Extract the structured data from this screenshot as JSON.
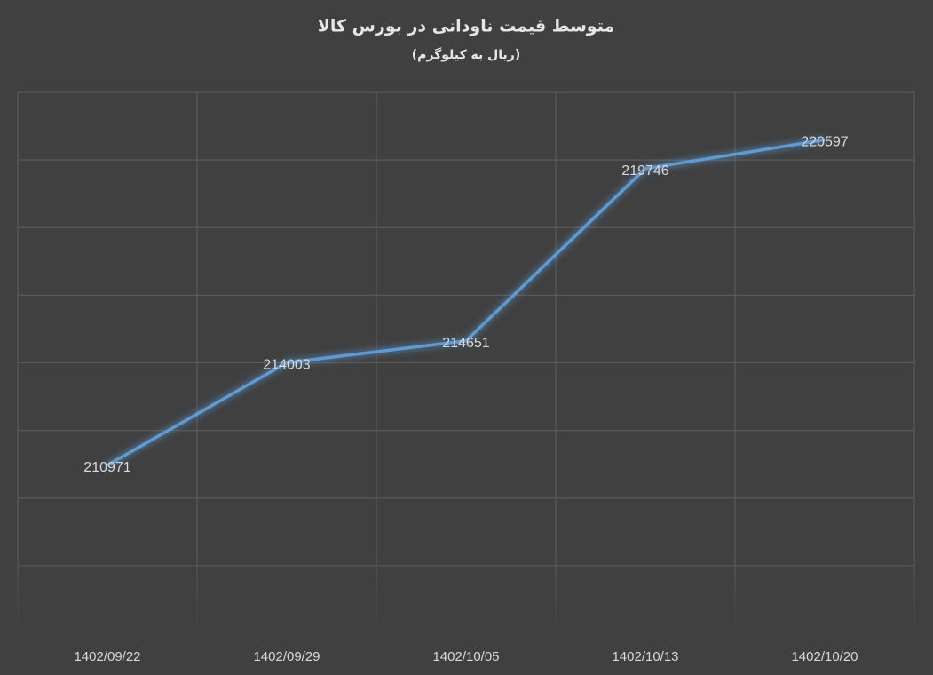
{
  "chart_data": {
    "type": "line",
    "title": "متوسط قیمت ناودانی در بورس کالا",
    "subtitle": "(ریال به کیلوگرم)",
    "categories": [
      "1402/09/22",
      "1402/09/29",
      "1402/10/05",
      "1402/10/13",
      "1402/10/20"
    ],
    "values": [
      210971,
      214003,
      214651,
      219746,
      220597
    ],
    "color": "#5b9bd5",
    "ylim": [
      206000,
      222000
    ],
    "yticks": [
      206000,
      208000,
      210000,
      212000,
      214000,
      216000,
      218000,
      220000,
      222000
    ],
    "grid": true
  }
}
